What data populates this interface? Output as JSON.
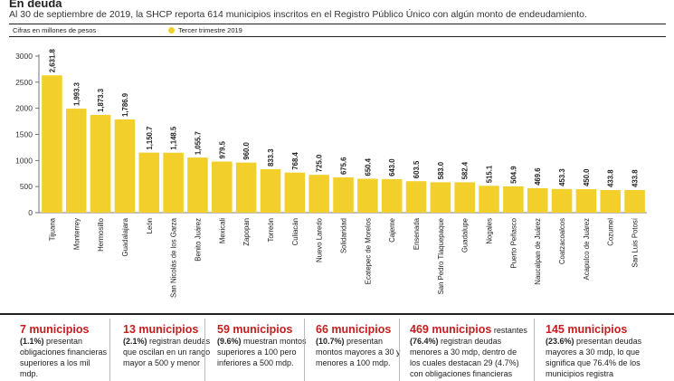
{
  "header": {
    "title": "En deuda",
    "subtitle": "Al 30 de septiembre de 2019, la SHCP reporta 614 municipios inscritos en el Registro Público Único con algún monto de endeudamiento.",
    "units_note": "Cifras en millones de pesos",
    "legend_label": "Tercer trimestre 2019"
  },
  "colors": {
    "bar": "#f3cf2b",
    "accent_red": "#c41e1e",
    "text": "#222222"
  },
  "chart_data": {
    "type": "bar",
    "title": "En deuda",
    "xlabel": "",
    "ylabel": "Cifras en millones de pesos",
    "ylim": [
      0,
      3000
    ],
    "yticks": [
      0,
      500,
      1000,
      1500,
      2000,
      2500,
      3000
    ],
    "grid": false,
    "legend": "top",
    "series": [
      {
        "name": "Tercer trimestre 2019"
      }
    ],
    "categories": [
      "Tijuana",
      "Monterrey",
      "Hermosillo",
      "Guadalajara",
      "León",
      "San Nicolás de los Garza",
      "Benito Juárez",
      "Mexicali",
      "Zapopan",
      "Torreón",
      "Culiacán",
      "Nuevo Laredo",
      "Solidaridad",
      "Ecatepec de Morelos",
      "Cajeme",
      "Ensenada",
      "San Pedro Tlaquepaque",
      "Guadalupe",
      "Nogales",
      "Puerto Peñasco",
      "Naucalpan de Juárez",
      "Coatzacoalcos",
      "Acapulco de Juárez",
      "Cozumel",
      "San Luis Potosí"
    ],
    "values": [
      2631.8,
      1993.3,
      1873.3,
      1786.9,
      1150.7,
      1148.5,
      1055.7,
      979.5,
      960.0,
      833.3,
      768.4,
      725.0,
      675.6,
      650.4,
      643.0,
      603.5,
      583.0,
      582.4,
      515.1,
      504.9,
      469.6,
      453.3,
      450.0,
      433.8,
      433.8
    ],
    "value_labels": [
      "2,631.8",
      "1,993.3",
      "1,873.3",
      "1,786.9",
      "1,150.7",
      "1,148.5",
      "1,055.7",
      "979.5",
      "960.0",
      "833.3",
      "768.4",
      "725.0",
      "675.6",
      "650.4",
      "643.0",
      "603.5",
      "583.0",
      "582.4",
      "515.1",
      "504.9",
      "469.6",
      "453.3",
      "450.0",
      "433.8",
      "433.8"
    ]
  },
  "boxes": [
    {
      "head": "7 municipios",
      "pct": "(1.1%)",
      "text": "presentan obligaciones financieras superiores a los mil mdp."
    },
    {
      "head": "13 municipios",
      "pct": "(2.1%)",
      "text": "registran deudas que oscilan en un rango mayor a 500 y menor"
    },
    {
      "head": "59 municipios",
      "pct": "(9.6%)",
      "text": "muestran montos superiores a 100 pero inferiores a 500 mdp."
    },
    {
      "head": "66 municipios",
      "pct": "(10.7%)",
      "text": "presentan montos mayores a 30 y menores a 100 mdp."
    },
    {
      "head": "469 municipios",
      "head_suffix": "restantes",
      "pct": "(76.4%)",
      "text": "registran deudas menores a 30 mdp, dentro de los cuales destacan 29 (4.7%) con obligaciones financieras"
    },
    {
      "head": "145 municipios",
      "pct": "(23.6%)",
      "text": "presentan deudas mayores a 30 mdp, lo que significa que 76.4% de los municipios registra"
    }
  ]
}
